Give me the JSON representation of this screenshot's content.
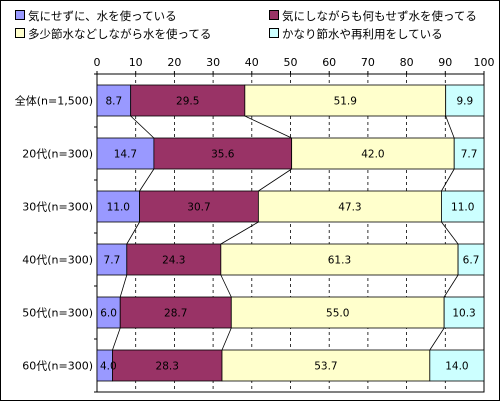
{
  "chart_data": {
    "type": "bar",
    "orientation": "horizontal",
    "stacked": true,
    "percent": true,
    "categories": [
      "全体(n=1,500)",
      "20代(n=300)",
      "30代(n=300)",
      "40代(n=300)",
      "50代(n=300)",
      "60代(n=300)"
    ],
    "series": [
      {
        "name": "気にせずに、水を使っている",
        "color": "#9999ff",
        "values": [
          8.7,
          14.7,
          11.0,
          7.7,
          6.0,
          4.0
        ]
      },
      {
        "name": "気にしながらも何もせず水を使ってる",
        "color": "#993366",
        "values": [
          29.5,
          35.6,
          30.7,
          24.3,
          28.7,
          28.3
        ]
      },
      {
        "name": "多少節水などしながら水を使ってる",
        "color": "#ffffcc",
        "values": [
          51.9,
          42.0,
          47.3,
          61.3,
          55.0,
          53.7
        ]
      },
      {
        "name": "かなり節水や再利用をしている",
        "color": "#ccffff",
        "values": [
          9.9,
          7.7,
          11.0,
          6.7,
          10.3,
          14.0
        ]
      }
    ],
    "value_labels": [
      [
        "8.7",
        "29.5",
        "51.9",
        "9.9"
      ],
      [
        "14.7",
        "35.6",
        "42.0",
        "7.7"
      ],
      [
        "11.0",
        "30.7",
        "47.3",
        "11.0"
      ],
      [
        "7.7",
        "24.3",
        "61.3",
        "6.7"
      ],
      [
        "6.0",
        "28.7",
        "55.0",
        "10.3"
      ],
      [
        "4.0",
        "28.3",
        "53.7",
        "14.0"
      ]
    ],
    "xlim": [
      0,
      100
    ],
    "xticks": [
      "0",
      "10",
      "20",
      "30",
      "40",
      "50",
      "60",
      "70",
      "80",
      "90",
      "100"
    ],
    "grid": true,
    "gridline_style": "dashed",
    "series_lines": true,
    "legend_position": "top"
  }
}
